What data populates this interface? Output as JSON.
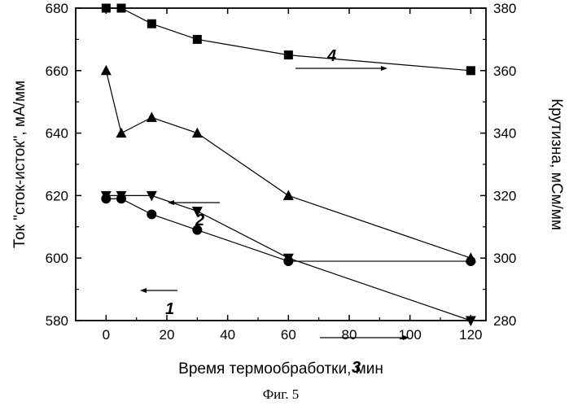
{
  "chart_data": {
    "type": "line",
    "xlabel": "Время термообработки, мин",
    "ylabel_left": "Ток \"сток-исток\", мА/мм",
    "ylabel_right": "Крутизна, мСм/мм",
    "caption": "Фиг. 5",
    "xlim": [
      -10,
      125
    ],
    "xticks": [
      0,
      20,
      40,
      60,
      80,
      100,
      120
    ],
    "ylim_left": [
      580,
      680
    ],
    "yticks_left": [
      580,
      600,
      620,
      640,
      660,
      680
    ],
    "ylim_right": [
      280,
      380
    ],
    "yticks_right": [
      280,
      300,
      320,
      340,
      360,
      380
    ],
    "grid": false,
    "series": [
      {
        "label": "1",
        "marker": "circle",
        "axis": "left",
        "x": [
          0,
          5,
          15,
          30,
          60,
          120
        ],
        "y": [
          619,
          619,
          614,
          609,
          599,
          599
        ],
        "arrow": "left"
      },
      {
        "label": "2",
        "marker": "triangle-up",
        "axis": "left",
        "x": [
          0,
          5,
          15,
          30,
          60,
          120
        ],
        "y": [
          660,
          640,
          645,
          640,
          620,
          600
        ],
        "arrow": "left"
      },
      {
        "label": "3",
        "marker": "triangle-down",
        "axis": "right",
        "x": [
          0,
          5,
          15,
          30,
          60,
          120
        ],
        "y": [
          320,
          320,
          320,
          315,
          300,
          280
        ],
        "arrow": "right"
      },
      {
        "label": "4",
        "marker": "square",
        "axis": "right",
        "x": [
          0,
          5,
          15,
          30,
          60,
          120
        ],
        "y": [
          380,
          380,
          375,
          370,
          365,
          360
        ],
        "arrow": "right"
      }
    ]
  }
}
